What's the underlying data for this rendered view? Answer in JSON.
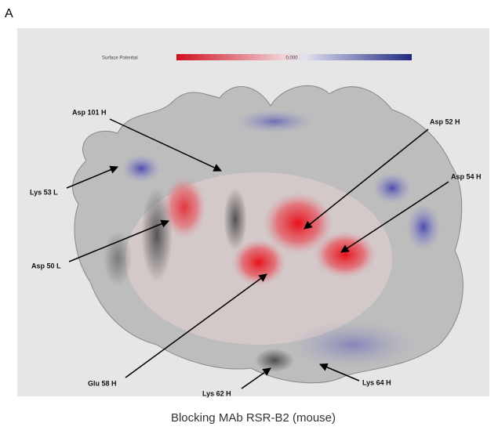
{
  "panel_label": "A",
  "legend": {
    "title": "Surface Potential",
    "center": "0.000"
  },
  "labels": [
    "Asp 101 H",
    "Asp 52 H",
    "Asp 54 H",
    "Lys 53 L",
    "Asp 50 L",
    "Glu 58 H",
    "Lys 62 H",
    "Lys 64 H"
  ],
  "caption": "Blocking MAb RSR-B2 (mouse)"
}
